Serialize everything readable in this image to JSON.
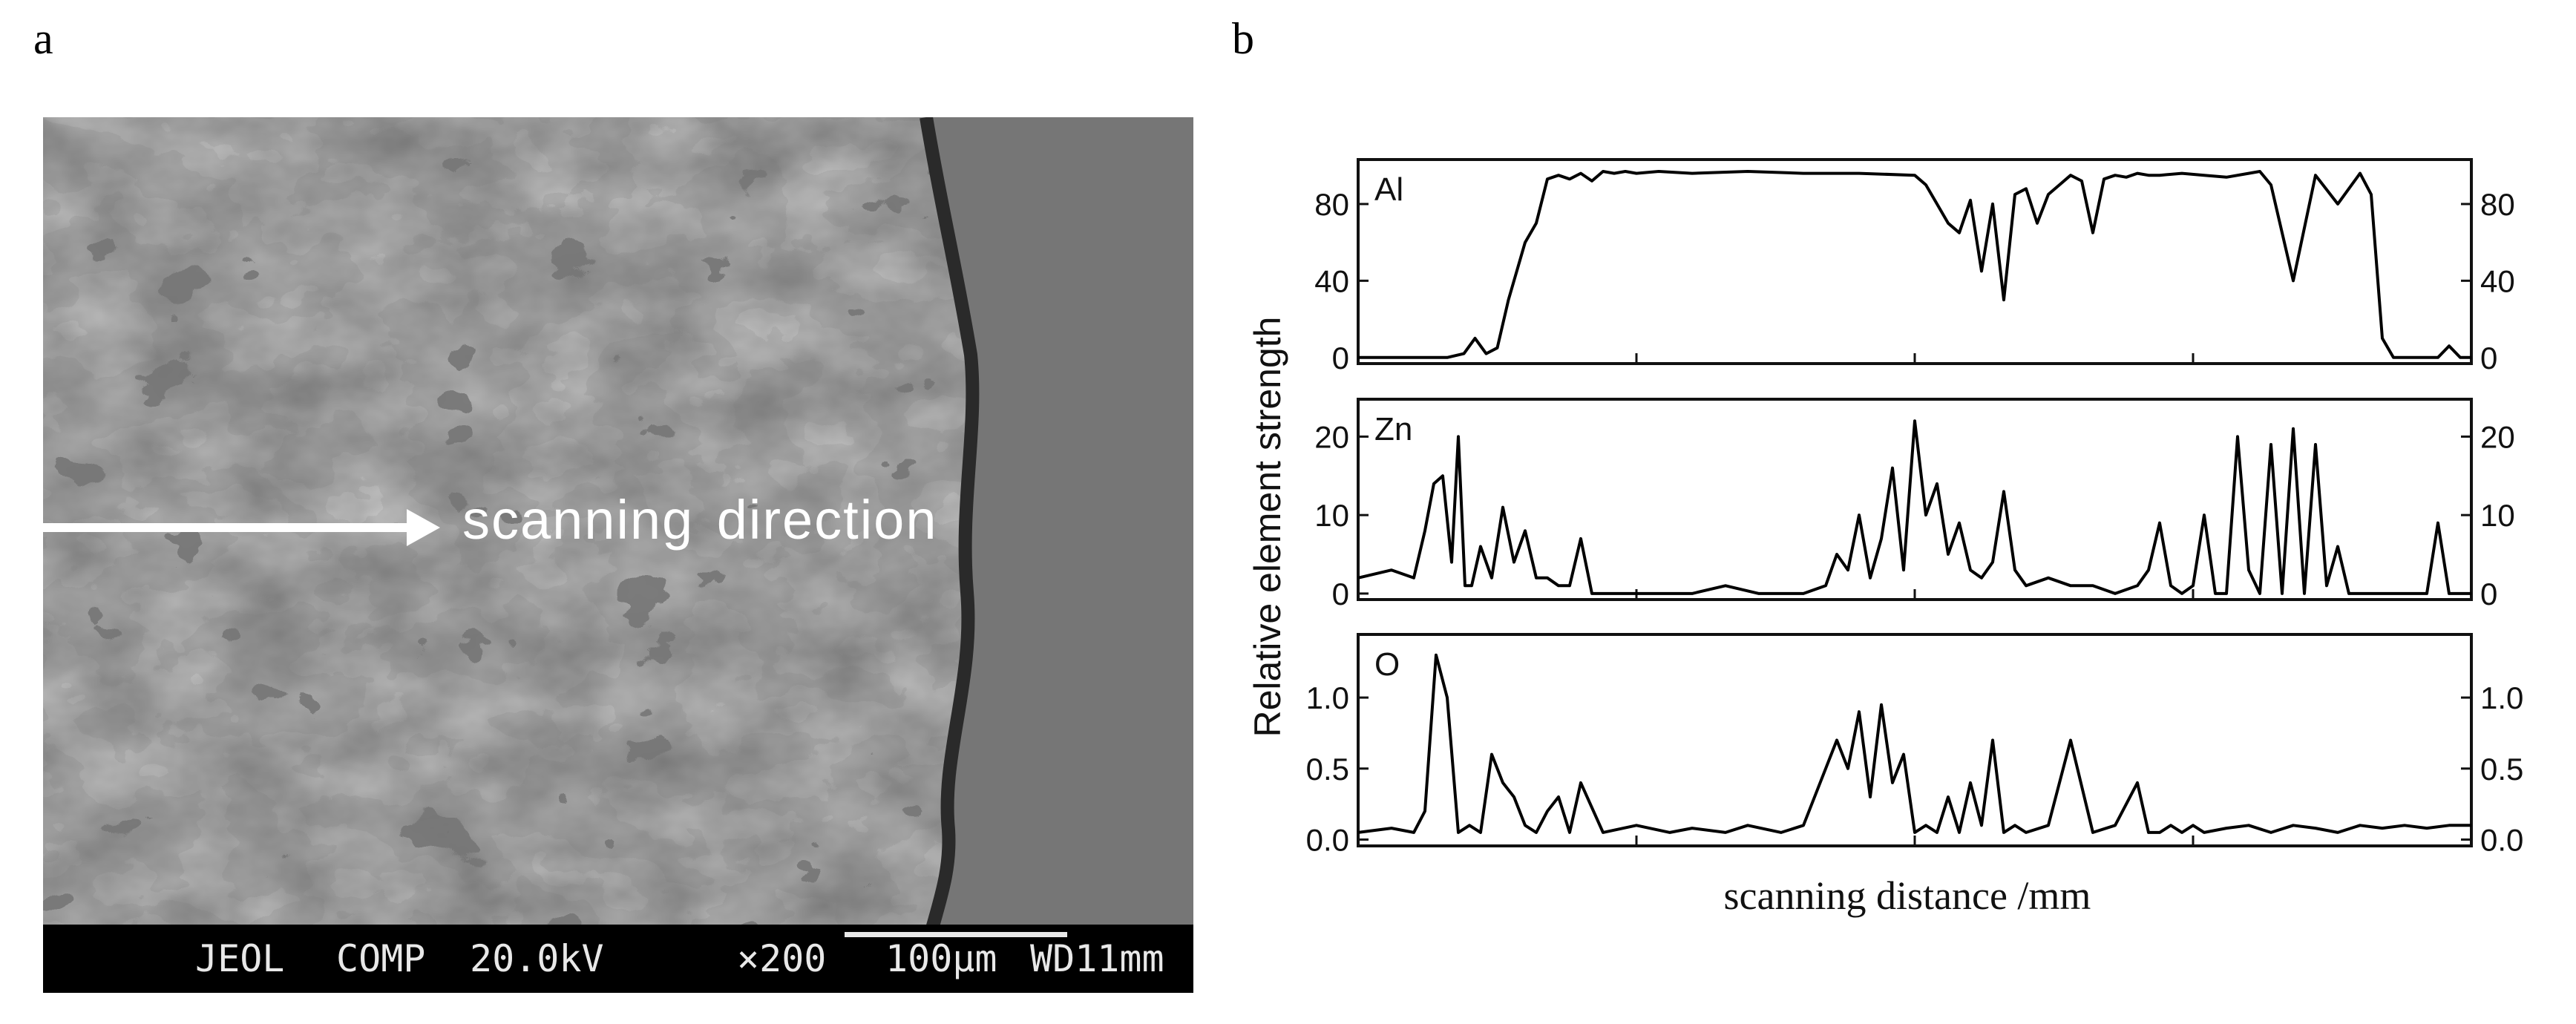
{
  "panel_a": {
    "letter": "a",
    "annotation": "scanning direction",
    "info_bar": {
      "instrument": "JEOL",
      "mode": "COMP",
      "voltage": "20.0kV",
      "magnification": "×200",
      "scale": "100μm",
      "working_distance": "WD11mm"
    }
  },
  "panel_b": {
    "letter": "b"
  },
  "chart_data": {
    "type": "line",
    "xlabel": "scanning distance /mm",
    "ylabel": "Relative element strength",
    "x_range": [
      0,
      100
    ],
    "x_tick_labels": false,
    "grid": false,
    "subplots": [
      {
        "name": "Al",
        "ylim": [
          0,
          100
        ],
        "yticks": [
          0,
          40,
          80
        ],
        "x": [
          0,
          8,
          9.5,
          10.5,
          11.5,
          12.5,
          13.5,
          15,
          16,
          17,
          18,
          19,
          20,
          21,
          22,
          23,
          24,
          25,
          27,
          30,
          35,
          40,
          45,
          50,
          51,
          52,
          53,
          54,
          55,
          56,
          57,
          58,
          59,
          60,
          61,
          62,
          63,
          64,
          65,
          66,
          67,
          68,
          69,
          70,
          71,
          72,
          74,
          76,
          78,
          80,
          81,
          82,
          84,
          86,
          88,
          90,
          91,
          92,
          93,
          94,
          95,
          96,
          97,
          98,
          99,
          100
        ],
        "y": [
          0,
          0,
          2,
          10,
          2,
          5,
          30,
          60,
          70,
          93,
          95,
          93,
          96,
          92,
          97,
          96,
          97,
          96,
          97,
          96,
          97,
          96,
          96,
          95,
          90,
          80,
          70,
          65,
          82,
          45,
          80,
          30,
          85,
          88,
          70,
          85,
          90,
          95,
          92,
          65,
          93,
          95,
          94,
          96,
          95,
          95,
          96,
          95,
          94,
          96,
          97,
          90,
          40,
          95,
          80,
          96,
          85,
          10,
          0,
          0,
          0,
          0,
          0,
          6,
          0,
          0
        ]
      },
      {
        "name": "Zn",
        "ylim": [
          0,
          24
        ],
        "yticks": [
          0,
          10,
          20
        ],
        "x": [
          0,
          3,
          5,
          6,
          6.8,
          7.6,
          8.4,
          9,
          9.6,
          10.2,
          11,
          12,
          13,
          14,
          15,
          16,
          17,
          18,
          19,
          20,
          21,
          22,
          23,
          24,
          25,
          26,
          27,
          30,
          33,
          36,
          40,
          42,
          43,
          44,
          45,
          46,
          47,
          48,
          49,
          50,
          51,
          52,
          53,
          54,
          55,
          56,
          57,
          58,
          59,
          60,
          62,
          64,
          66,
          68,
          70,
          71,
          72,
          73,
          74,
          75,
          76,
          77,
          78,
          79,
          80,
          81,
          82,
          83,
          84,
          85,
          86,
          87,
          88,
          89,
          90,
          91,
          92,
          93,
          94,
          95,
          96,
          97,
          98,
          99,
          100
        ],
        "y": [
          2,
          3,
          2,
          8,
          14,
          15,
          4,
          20,
          1,
          1,
          6,
          2,
          11,
          4,
          8,
          2,
          2,
          1,
          1,
          7,
          0,
          0,
          0,
          0,
          0,
          0,
          0,
          0,
          1,
          0,
          0,
          1,
          5,
          3,
          10,
          2,
          7,
          16,
          3,
          22,
          10,
          14,
          5,
          9,
          3,
          2,
          4,
          13,
          3,
          1,
          2,
          1,
          1,
          0,
          1,
          3,
          9,
          1,
          0,
          1,
          10,
          0,
          0,
          20,
          3,
          0,
          19,
          0,
          21,
          0,
          19,
          1,
          6,
          0,
          0,
          0,
          0,
          0,
          0,
          0,
          0,
          9,
          0,
          0,
          0
        ]
      },
      {
        "name": "O",
        "ylim": [
          0,
          1.4
        ],
        "yticks": [
          0.0,
          0.5,
          1.0
        ],
        "x": [
          0,
          3,
          5,
          6,
          7,
          8,
          9,
          10,
          11,
          12,
          13,
          14,
          15,
          16,
          17,
          18,
          19,
          20,
          22,
          25,
          28,
          30,
          33,
          35,
          38,
          40,
          42,
          43,
          44,
          45,
          46,
          47,
          48,
          49,
          50,
          51,
          52,
          53,
          54,
          55,
          56,
          57,
          58,
          59,
          60,
          62,
          64,
          66,
          68,
          70,
          71,
          72,
          73,
          74,
          75,
          76,
          78,
          80,
          82,
          84,
          86,
          88,
          90,
          92,
          94,
          96,
          98,
          100
        ],
        "y": [
          0.05,
          0.08,
          0.05,
          0.2,
          1.3,
          1.0,
          0.05,
          0.1,
          0.05,
          0.6,
          0.4,
          0.3,
          0.1,
          0.05,
          0.2,
          0.3,
          0.05,
          0.4,
          0.05,
          0.1,
          0.05,
          0.08,
          0.05,
          0.1,
          0.05,
          0.1,
          0.5,
          0.7,
          0.5,
          0.9,
          0.3,
          0.95,
          0.4,
          0.6,
          0.05,
          0.1,
          0.05,
          0.3,
          0.05,
          0.4,
          0.1,
          0.7,
          0.05,
          0.1,
          0.05,
          0.1,
          0.7,
          0.05,
          0.1,
          0.4,
          0.05,
          0.05,
          0.1,
          0.05,
          0.1,
          0.05,
          0.08,
          0.1,
          0.05,
          0.1,
          0.08,
          0.05,
          0.1,
          0.08,
          0.1,
          0.08,
          0.1,
          0.1
        ]
      }
    ]
  }
}
